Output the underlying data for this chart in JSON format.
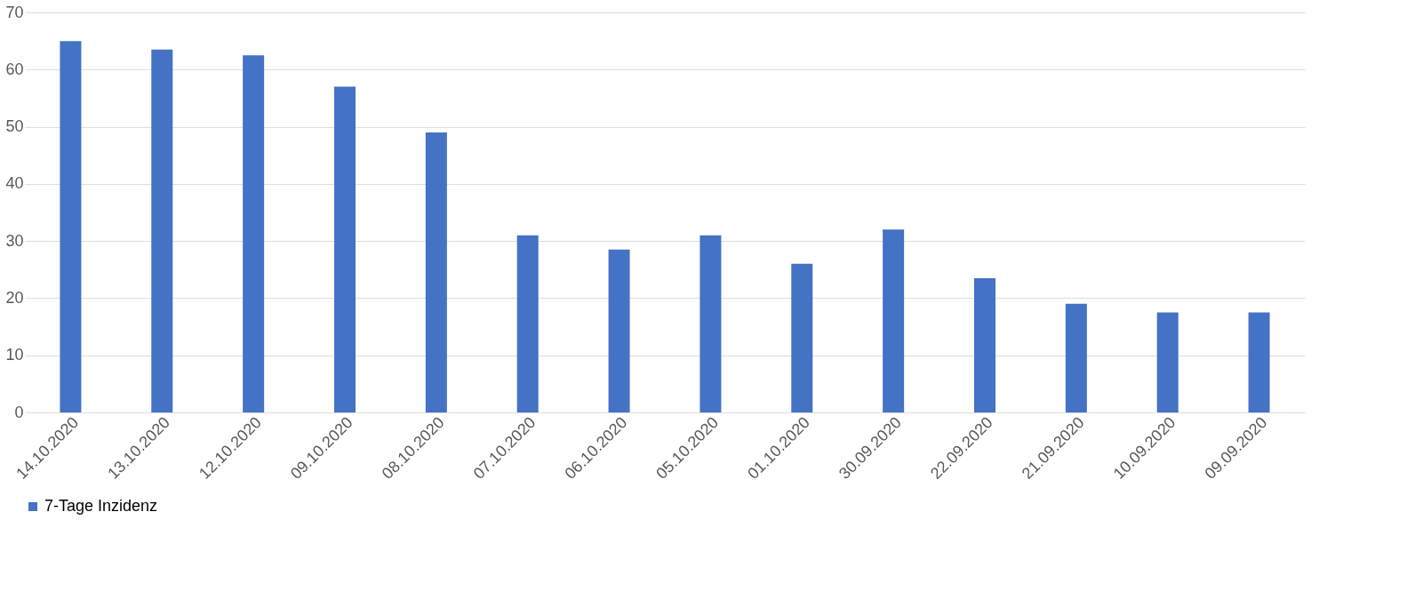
{
  "chart_data": {
    "type": "bar",
    "categories": [
      "14.10.2020",
      "13.10.2020",
      "12.10.2020",
      "09.10.2020",
      "08.10.2020",
      "07.10.2020",
      "06.10.2020",
      "05.10.2020",
      "01.10.2020",
      "30.09.2020",
      "22.09.2020",
      "21.09.2020",
      "10.09.2020",
      "09.09.2020"
    ],
    "series": [
      {
        "name": "7-Tage Inzidenz",
        "color": "#4472c4",
        "values": [
          65,
          63.5,
          62.5,
          57,
          49,
          31,
          28.5,
          31,
          26,
          32,
          23.5,
          19,
          17.5,
          17.5
        ]
      }
    ],
    "ylim": [
      0,
      70
    ],
    "yticks": [
      0,
      10,
      20,
      30,
      40,
      50,
      60,
      70
    ],
    "grid": "y",
    "legend": "bottom"
  }
}
